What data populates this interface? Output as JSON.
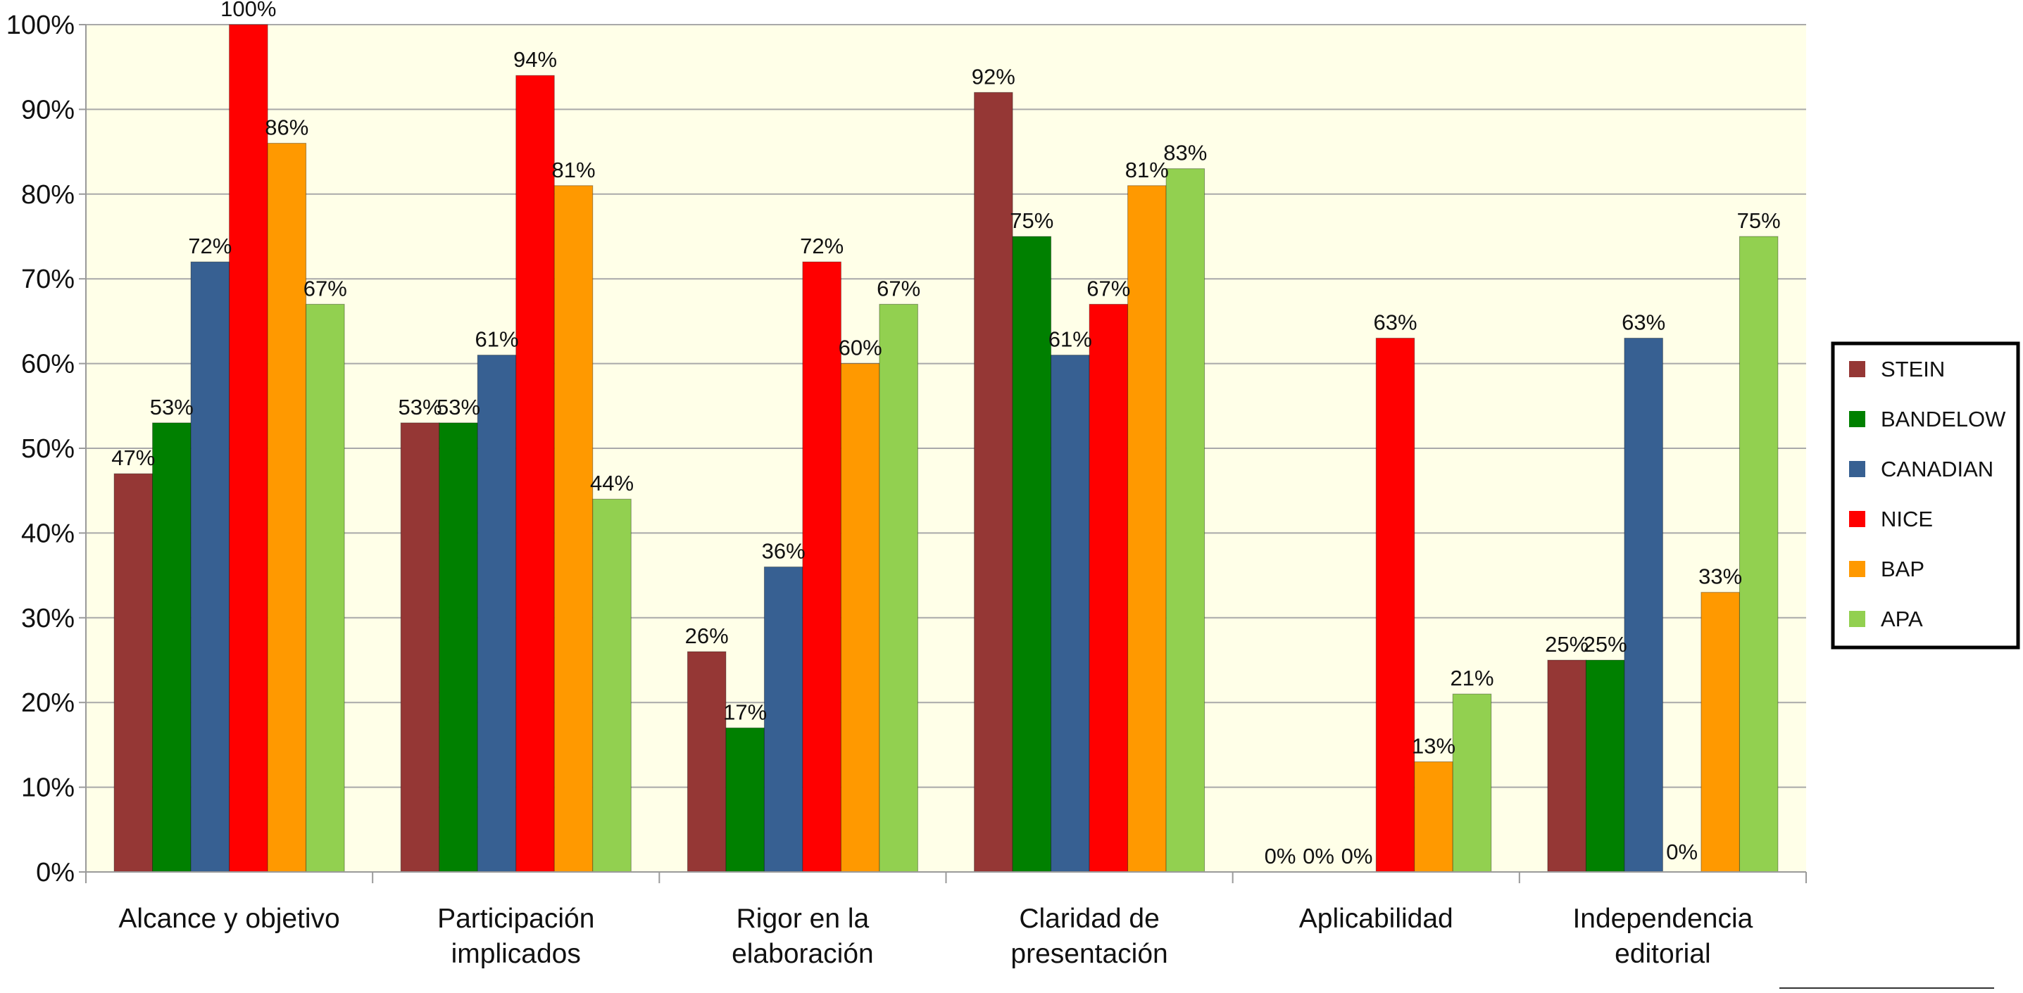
{
  "chart_data": {
    "type": "bar",
    "categories": [
      [
        "Alcance y objetivo"
      ],
      [
        "Participación",
        "implicados"
      ],
      [
        "Rigor en la",
        "elaboración"
      ],
      [
        "Claridad de",
        "presentación"
      ],
      [
        "Aplicabilidad"
      ],
      [
        "Independencia",
        "editorial"
      ]
    ],
    "series": [
      {
        "name": "STEIN",
        "color": "#953735",
        "values": [
          47,
          53,
          26,
          92,
          0,
          25
        ]
      },
      {
        "name": "BANDELOW",
        "color": "#008000",
        "values": [
          53,
          53,
          17,
          75,
          0,
          25
        ]
      },
      {
        "name": "CANADIAN",
        "color": "#376092",
        "values": [
          72,
          61,
          36,
          61,
          0,
          63
        ]
      },
      {
        "name": "NICE",
        "color": "#ff0000",
        "values": [
          100,
          94,
          72,
          67,
          63,
          0
        ]
      },
      {
        "name": "BAP",
        "color": "#ff9900",
        "values": [
          86,
          81,
          60,
          81,
          13,
          33
        ]
      },
      {
        "name": "APA",
        "color": "#92d050",
        "values": [
          67,
          44,
          67,
          83,
          21,
          75
        ]
      }
    ],
    "data_labels": [
      [
        "47%",
        "53%",
        "72%",
        "100%",
        "86%",
        "67%"
      ],
      [
        "53%",
        "53%",
        "61%",
        "94%",
        "81%",
        "44%"
      ],
      [
        "26%",
        "17%",
        "36%",
        "72%",
        "60%",
        "67%"
      ],
      [
        "92%",
        "75%",
        "61%",
        "67%",
        "81%",
        "83%"
      ],
      [
        "0%",
        "0%",
        "0%",
        "63%",
        "13%",
        "21%"
      ],
      [
        "25%",
        "25%",
        "63%",
        "",
        "33%",
        "75%"
      ]
    ],
    "extra_labels": [
      {
        "category": 5,
        "series": 3,
        "text": "0%"
      }
    ],
    "yticks": [
      "0%",
      "10%",
      "20%",
      "30%",
      "40%",
      "50%",
      "60%",
      "70%",
      "80%",
      "90%",
      "100%"
    ],
    "ylim": [
      0,
      100
    ],
    "plot_background": "#ffffe8",
    "grid": true,
    "legend_position": "right",
    "title": "",
    "xlabel": "",
    "ylabel": ""
  }
}
